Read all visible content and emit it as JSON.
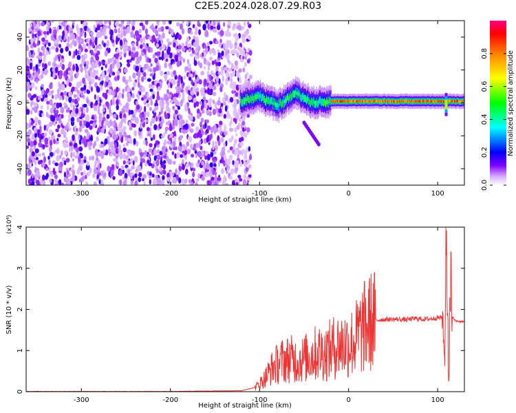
{
  "title": "C2E5.2024.028.07.29.R03",
  "chart_data": [
    {
      "type": "heatmap",
      "xlabel": "Height of straight line (km)",
      "ylabel": "Frequency (Hz)",
      "xlim": [
        -362,
        130
      ],
      "ylim": [
        -50,
        50
      ],
      "xticks": [
        -300,
        -200,
        -100,
        0,
        100
      ],
      "yticks": [
        -40,
        -20,
        0,
        20,
        40
      ],
      "colorbar": {
        "label": "Normalized spectral amplitude",
        "range": [
          0.0,
          1.0
        ],
        "ticks": [
          "0.0",
          "0.2",
          "0.4",
          "0.6",
          "0.8"
        ],
        "tick_values": [
          0.0,
          0.2,
          0.4,
          0.6,
          0.8
        ],
        "colors": [
          "#ffffff",
          "#cc99ff",
          "#7f00ff",
          "#0000ff",
          "#00ffff",
          "#00ff00",
          "#ffff00",
          "#ff8000",
          "#ff0000",
          "#ff0080"
        ]
      },
      "regions": [
        {
          "x_range": [
            -362,
            -122
          ],
          "freq_range": [
            -50,
            50
          ],
          "amplitude": 0.1,
          "description": "noise"
        },
        {
          "x_range": [
            -122,
            -20
          ],
          "freq_center": [
            [
              -122,
              1
            ],
            [
              -100,
              4
            ],
            [
              -80,
              -2
            ],
            [
              -60,
              6
            ],
            [
              -40,
              0
            ],
            [
              -20,
              1
            ]
          ],
          "amplitude": 0.45
        },
        {
          "x_range": [
            -20,
            130
          ],
          "freq_center": 1,
          "amplitude": 0.95
        }
      ],
      "grid": false
    },
    {
      "type": "line",
      "xlabel": "Height of straight line (km)",
      "ylabel": "SNR (10 * v/v)",
      "scale_label": "(x10⁴)",
      "xlim": [
        -362,
        130
      ],
      "ylim": [
        0,
        4
      ],
      "xticks": [
        -300,
        -200,
        -100,
        0,
        100
      ],
      "yticks": [
        0,
        1,
        2,
        3,
        4
      ],
      "series_color": "#ee3333",
      "x": [
        -362,
        -300,
        -200,
        -120,
        -105,
        -95,
        -85,
        -75,
        -65,
        -55,
        -45,
        -35,
        -25,
        -15,
        -5,
        5,
        15,
        25,
        35,
        45,
        55,
        65,
        75,
        85,
        95,
        100,
        105,
        108,
        110,
        112,
        115,
        120,
        130
      ],
      "y": [
        0.0,
        0.0,
        0.0,
        0.02,
        0.1,
        0.3,
        0.6,
        0.75,
        0.8,
        0.75,
        0.85,
        0.95,
        0.95,
        1.1,
        1.15,
        1.2,
        1.5,
        1.7,
        1.75,
        1.76,
        1.76,
        1.75,
        1.78,
        1.76,
        1.78,
        1.8,
        1.8,
        0.8,
        3.9,
        0.5,
        1.85,
        1.72,
        1.7
      ]
    }
  ]
}
